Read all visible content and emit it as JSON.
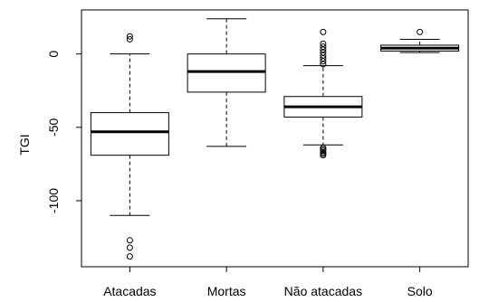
{
  "chart_data": {
    "type": "boxplot",
    "title": "",
    "xlabel": "",
    "ylabel": "TGI",
    "ylim": [
      -145,
      30
    ],
    "yticks": [
      0,
      -50,
      -100
    ],
    "ytick_labels": [
      "0",
      "-50",
      "-100"
    ],
    "grid": false,
    "legend": "none",
    "categories": [
      "Atacadas",
      "Mortas",
      "Não atacadas",
      "Solo"
    ],
    "boxes": [
      {
        "category": "Atacadas",
        "whisker_low": -110,
        "q1": -69,
        "median": -53,
        "q3": -40,
        "whisker_high": 0,
        "outliers": [
          12,
          10,
          -127,
          -132,
          -138
        ]
      },
      {
        "category": "Mortas",
        "whisker_low": -63,
        "q1": -26,
        "median": -12,
        "q3": 0,
        "whisker_high": 24,
        "outliers": []
      },
      {
        "category": "Não atacadas",
        "whisker_low": -62,
        "q1": -43,
        "median": -36,
        "q3": -29,
        "whisker_high": -8,
        "outliers": [
          15,
          7,
          5,
          3,
          1,
          -1,
          -3,
          -5,
          -7,
          -64,
          -65,
          -66,
          -67,
          -68,
          -69
        ]
      },
      {
        "category": "Solo",
        "whisker_low": 1,
        "q1": 2,
        "median": 4,
        "q3": 6,
        "whisker_high": 10,
        "outliers": [
          15
        ]
      }
    ]
  }
}
